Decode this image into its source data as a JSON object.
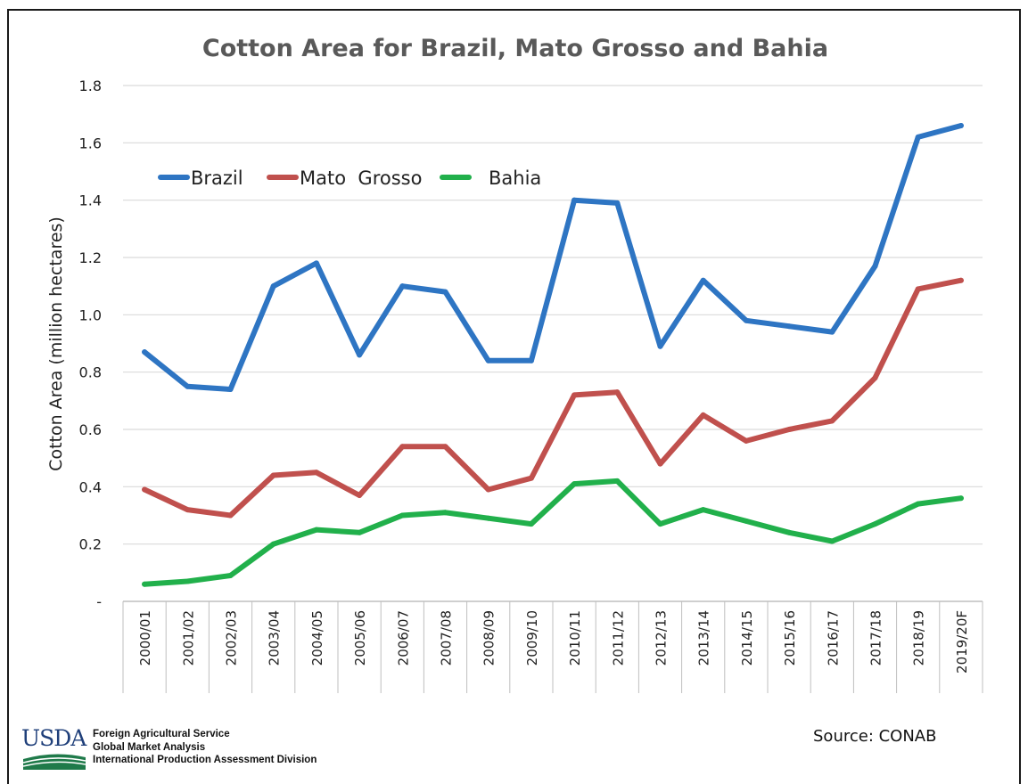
{
  "chart_data": {
    "type": "line",
    "title": "Cotton Area for Brazil, Mato Grosso and Bahia",
    "xlabel": "",
    "ylabel": "Cotton Area (million hectares)",
    "ylim": [
      0,
      1.8
    ],
    "yticks": [
      "-",
      "0.2",
      "0.4",
      "0.6",
      "0.8",
      "1.0",
      "1.2",
      "1.4",
      "1.6",
      "1.8"
    ],
    "grid": true,
    "legend_position": "top-left",
    "categories": [
      "2000/01",
      "2001/02",
      "2002/03",
      "2003/04",
      "2004/05",
      "2005/06",
      "2006/07",
      "2007/08",
      "2008/09",
      "2009/10",
      "2010/11",
      "2011/12",
      "2012/13",
      "2013/14",
      "2014/15",
      "2015/16",
      "2016/17",
      "2017/18",
      "2018/19",
      "2019/20F"
    ],
    "series": [
      {
        "name": "Brazil",
        "color": "#2e75c3",
        "values": [
          0.87,
          0.75,
          0.74,
          1.1,
          1.18,
          0.86,
          1.1,
          1.08,
          0.84,
          0.84,
          1.4,
          1.39,
          0.89,
          1.12,
          0.98,
          0.96,
          0.94,
          1.17,
          1.62,
          1.66
        ]
      },
      {
        "name": "Mato  Grosso",
        "color": "#c0504d",
        "values": [
          0.39,
          0.32,
          0.3,
          0.44,
          0.45,
          0.37,
          0.54,
          0.54,
          0.39,
          0.43,
          0.72,
          0.73,
          0.48,
          0.65,
          0.56,
          0.6,
          0.63,
          0.78,
          1.09,
          1.12
        ]
      },
      {
        "name": "Bahia",
        "color": "#21b04b",
        "values": [
          0.06,
          0.07,
          0.09,
          0.2,
          0.25,
          0.24,
          0.3,
          0.31,
          0.29,
          0.27,
          0.41,
          0.42,
          0.27,
          0.32,
          0.28,
          0.24,
          0.21,
          0.27,
          0.34,
          0.36
        ]
      }
    ]
  },
  "footer": {
    "logo_text": "USDA",
    "agency_lines": [
      "Foreign Agricultural Service",
      "Global Market Analysis",
      "International Production  Assessment Division"
    ],
    "source": "Source: CONAB"
  }
}
